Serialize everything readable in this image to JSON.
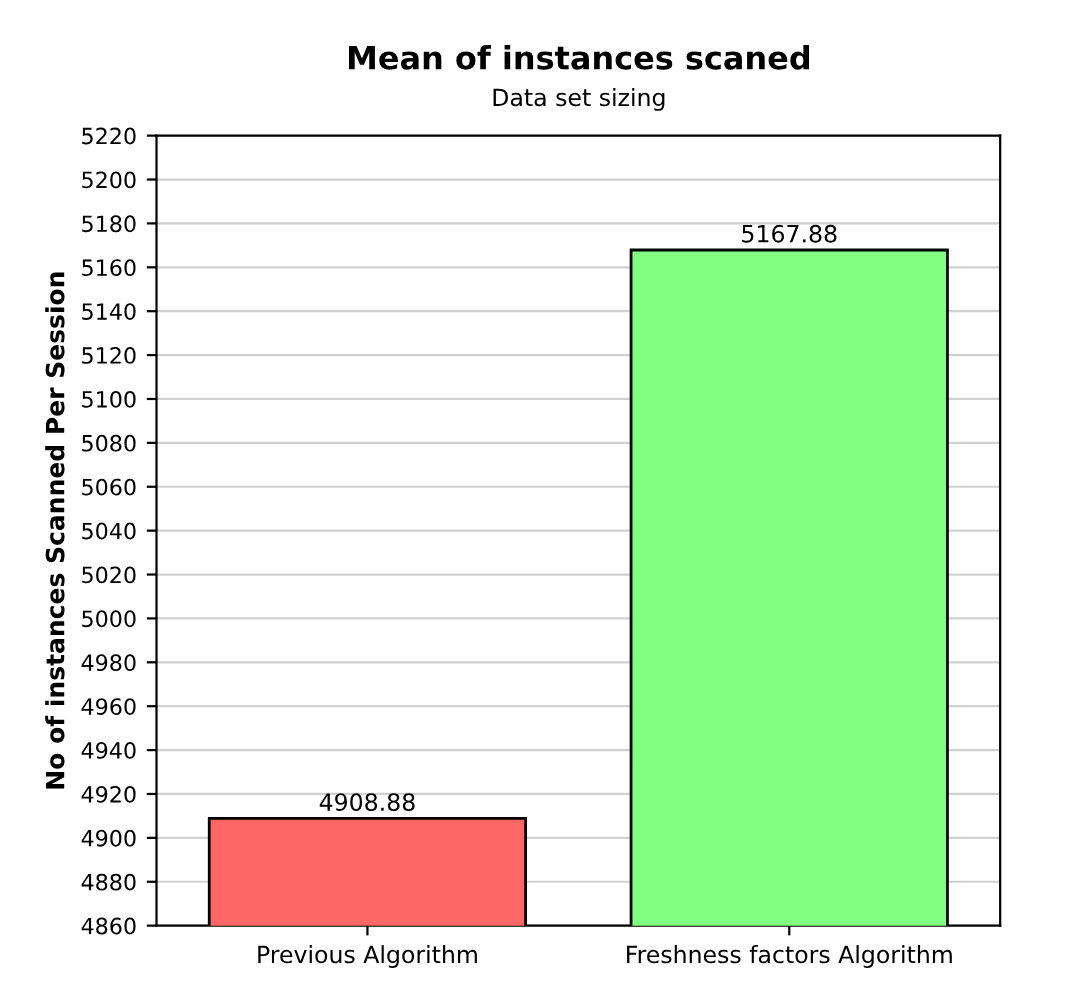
{
  "chart_data": {
    "type": "bar",
    "title": "Mean of instances scaned",
    "subtitle": "Data set sizing",
    "ylabel": "No of instances Scanned Per Session",
    "categories": [
      "Previous Algorithm",
      "Freshness factors Algorithm"
    ],
    "values": [
      4908.88,
      5167.88
    ],
    "colors": [
      "#ff6666",
      "#80ff80"
    ],
    "ylim": [
      4860,
      5220
    ],
    "yticks": [
      4860,
      4880,
      4900,
      4920,
      4940,
      4960,
      4980,
      5000,
      5020,
      5040,
      5060,
      5080,
      5100,
      5120,
      5140,
      5160,
      5180,
      5200,
      5220
    ],
    "grid": "y",
    "data_labels": true
  }
}
